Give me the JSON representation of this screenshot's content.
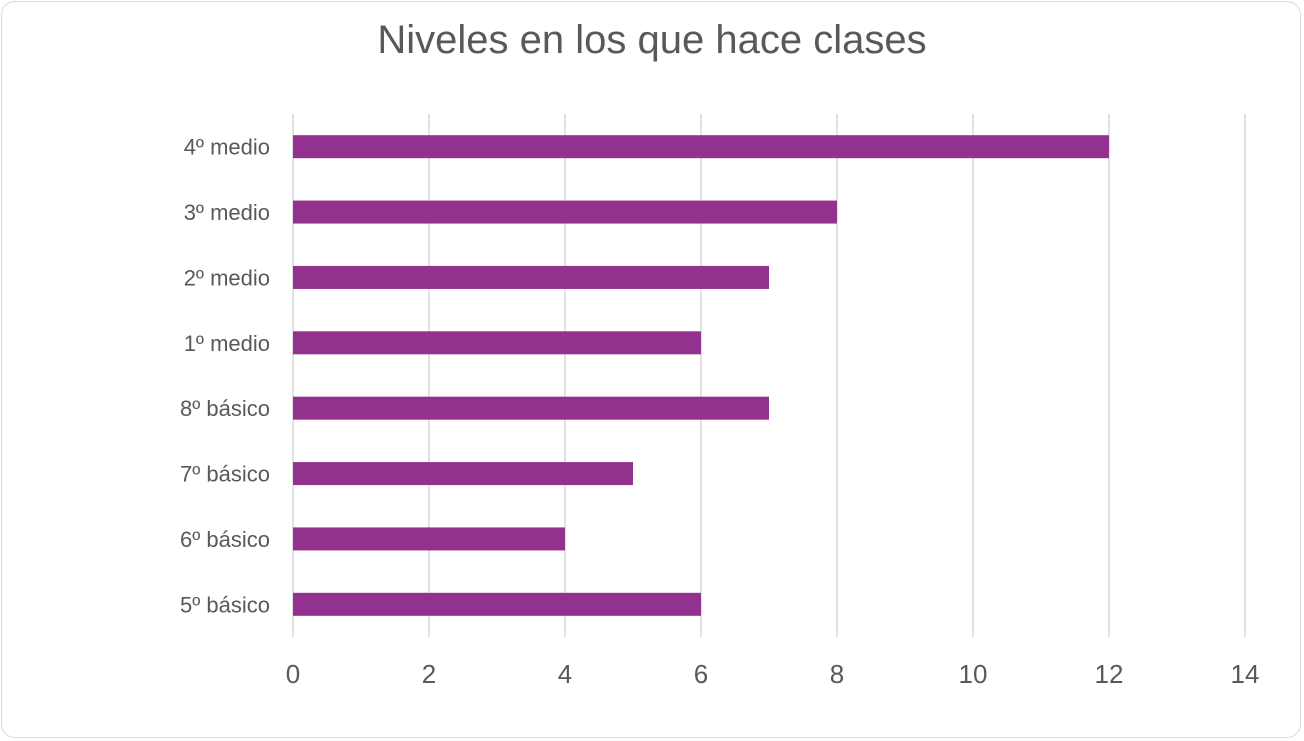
{
  "chart_data": {
    "type": "bar",
    "orientation": "horizontal",
    "title": "Niveles en los que hace clases",
    "categories": [
      "5º básico",
      "6º básico",
      "7º básico",
      "8º básico",
      "1º medio",
      "2º medio",
      "3º medio",
      "4º medio"
    ],
    "values": [
      6,
      4,
      5,
      7,
      6,
      7,
      8,
      12
    ],
    "xlim": [
      0,
      14
    ],
    "xticks": [
      "0",
      "2",
      "4",
      "6",
      "8",
      "10",
      "12",
      "14"
    ],
    "xlabel": "",
    "ylabel": "",
    "grid": "vertical",
    "legend": "none",
    "bar_color": "#92318E",
    "grid_color": "#d9d9d9",
    "text_color": "#595959"
  }
}
